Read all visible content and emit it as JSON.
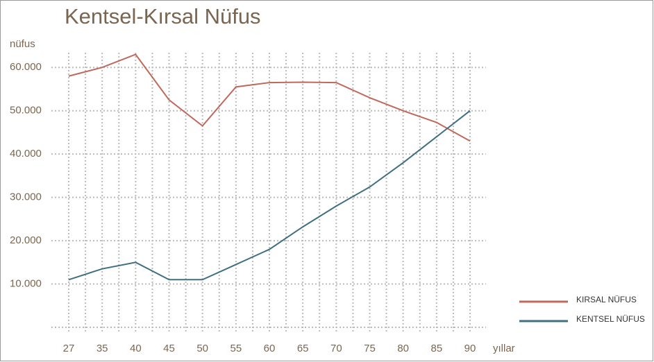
{
  "chart_data": {
    "type": "line",
    "title": "Kentsel-Kırsal Nüfus",
    "y_label": "nüfus",
    "x_label": "yıllar",
    "categories": [
      "27",
      "35",
      "40",
      "45",
      "50",
      "55",
      "60",
      "65",
      "70",
      "75",
      "80",
      "85",
      "90"
    ],
    "series": [
      {
        "name": "KIRSAL NÜFUS",
        "color": "#c0685b",
        "values": [
          58000,
          60000,
          63000,
          52500,
          46500,
          55500,
          56500,
          56600,
          56500,
          53000,
          50000,
          47300,
          43000
        ]
      },
      {
        "name": "KENTSEL NÜFUS",
        "color": "#3f6f80",
        "values": [
          11000,
          13500,
          15000,
          11000,
          11000,
          14500,
          18000,
          23200,
          28000,
          32400,
          38000,
          44000,
          50000
        ]
      }
    ],
    "ylim": [
      0,
      65000
    ],
    "yticks": [
      {
        "value": 10000,
        "label": "10.000"
      },
      {
        "value": 20000,
        "label": "20.000"
      },
      {
        "value": 30000,
        "label": "30.000"
      },
      {
        "value": 40000,
        "label": "40.000"
      },
      {
        "value": 50000,
        "label": "50.000"
      },
      {
        "value": 60000,
        "label": "60.000"
      }
    ],
    "grid": true,
    "legend": "lower right"
  }
}
